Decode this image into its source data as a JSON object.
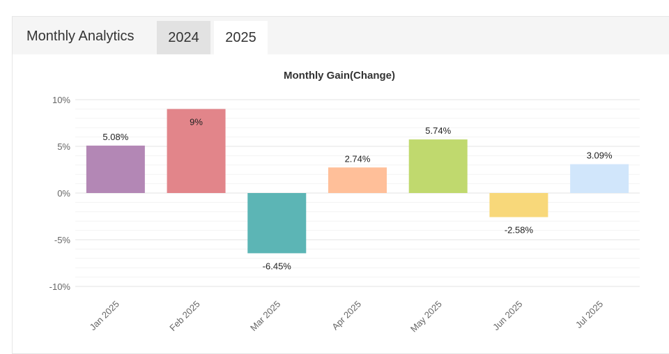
{
  "header": {
    "title": "Monthly Analytics",
    "tabs": [
      {
        "label": "2024",
        "active": false
      },
      {
        "label": "2025",
        "active": true
      }
    ]
  },
  "chart_data": {
    "type": "bar",
    "title": "Monthly Gain(Change)",
    "categories": [
      "Jan 2025",
      "Feb 2025",
      "Mar 2025",
      "Apr 2025",
      "May 2025",
      "Jun 2025",
      "Jul 2025"
    ],
    "values": [
      5.08,
      9,
      -6.45,
      2.74,
      5.74,
      -2.58,
      3.09
    ],
    "value_labels": [
      "5.08%",
      "9%",
      "-6.45%",
      "2.74%",
      "5.74%",
      "-2.58%",
      "3.09%"
    ],
    "colors": [
      "#b387b5",
      "#e2858a",
      "#5cb5b5",
      "#ffbf99",
      "#c0d96e",
      "#f8d87a",
      "#d1e6fb"
    ],
    "yticks": [
      10,
      5,
      0,
      -5,
      -10
    ],
    "ytick_labels": [
      "10%",
      "5%",
      "0%",
      "-5%",
      "-10%"
    ],
    "ylim": [
      -10,
      10
    ],
    "grid": true,
    "legend": "none"
  }
}
